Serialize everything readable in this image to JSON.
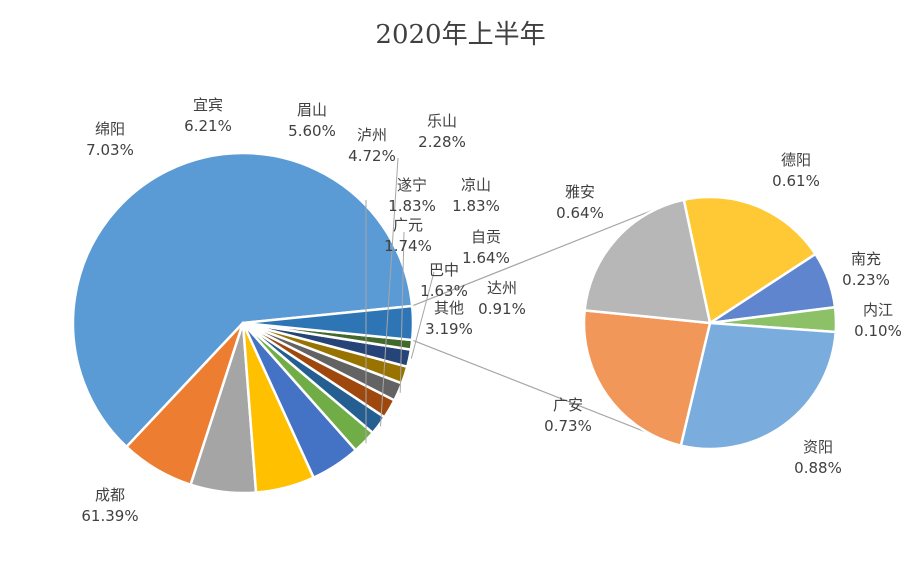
{
  "chart_data": {
    "type": "pie",
    "title": "2020年上半年",
    "pie": [
      {
        "name": "成都",
        "value": 61.39,
        "label": "61.39%",
        "color": "#5b9bd5"
      },
      {
        "name": "绵阳",
        "value": 7.03,
        "label": "7.03%",
        "color": "#ed7d31"
      },
      {
        "name": "宜宾",
        "value": 6.21,
        "label": "6.21%",
        "color": "#a5a5a5"
      },
      {
        "name": "眉山",
        "value": 5.6,
        "label": "5.60%",
        "color": "#ffc000"
      },
      {
        "name": "泸州",
        "value": 4.72,
        "label": "4.72%",
        "color": "#4472c4"
      },
      {
        "name": "乐山",
        "value": 2.28,
        "label": "2.28%",
        "color": "#70ad47"
      },
      {
        "name": "遂宁",
        "value": 1.83,
        "label": "1.83%",
        "color": "#255e91"
      },
      {
        "name": "凉山",
        "value": 1.83,
        "label": "1.83%",
        "color": "#9e480e"
      },
      {
        "name": "广元",
        "value": 1.74,
        "label": "1.74%",
        "color": "#636363"
      },
      {
        "name": "自贡",
        "value": 1.64,
        "label": "1.64%",
        "color": "#997300"
      },
      {
        "name": "巴中",
        "value": 1.63,
        "label": "1.63%",
        "color": "#264478"
      },
      {
        "name": "达州",
        "value": 0.91,
        "label": "0.91%",
        "color": "#43682b"
      },
      {
        "name": "其他",
        "value": 3.19,
        "label": "3.19%",
        "color": "#2e75b6"
      }
    ],
    "sub_pie": [
      {
        "name": "德阳",
        "value": 0.61,
        "label": "0.61%",
        "color": "#ffc935"
      },
      {
        "name": "南充",
        "value": 0.23,
        "label": "0.23%",
        "color": "#5f85cf"
      },
      {
        "name": "内江",
        "value": 0.1,
        "label": "0.10%",
        "color": "#8cc168"
      },
      {
        "name": "资阳",
        "value": 0.88,
        "label": "0.88%",
        "color": "#7aaddd"
      },
      {
        "name": "广安",
        "value": 0.73,
        "label": "0.73%",
        "color": "#f1975a"
      },
      {
        "name": "雅安",
        "value": 0.64,
        "label": "0.64%",
        "color": "#b7b7b7"
      }
    ]
  }
}
